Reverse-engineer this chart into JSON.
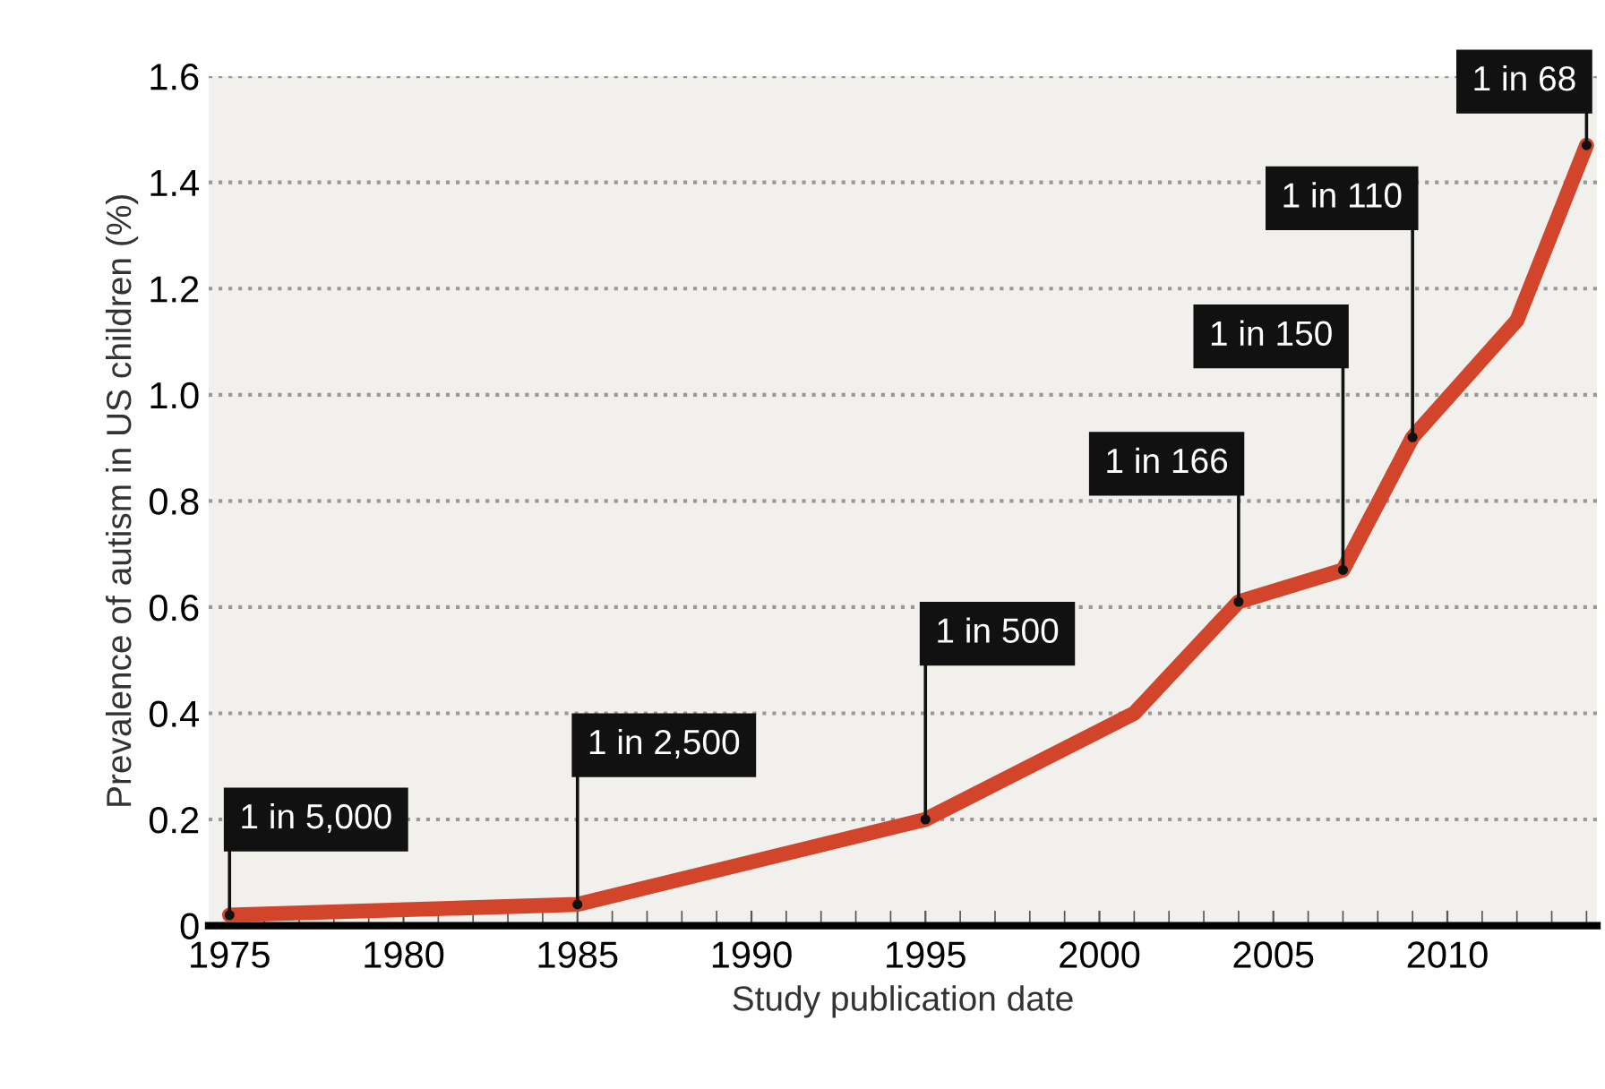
{
  "chart_data": {
    "type": "line",
    "xlabel": "Study publication date",
    "ylabel": "Prevalence of autism in US children (%)",
    "x": [
      1975,
      1985,
      1995,
      2001,
      2004,
      2007,
      2009,
      2012,
      2014
    ],
    "series": [
      {
        "color": "#d2452b",
        "values": [
          0.02,
          0.04,
          0.2,
          0.4,
          0.61,
          0.67,
          0.92,
          1.14,
          1.47
        ]
      }
    ],
    "xlim": [
      1974.4,
      2014.3
    ],
    "xticks": [
      1975,
      1980,
      1985,
      1990,
      1995,
      2000,
      2005,
      2010
    ],
    "ylim": [
      0,
      1.6
    ],
    "yticks": [
      0,
      {
        "value": 0.2,
        "label": "0.2"
      },
      {
        "value": 0.4,
        "label": "0.4"
      },
      {
        "value": 0.6,
        "label": "0.6"
      },
      {
        "value": 0.8,
        "label": "0.8"
      },
      {
        "value": 1.0,
        "label": "1.0"
      },
      {
        "value": 1.2,
        "label": "1.2"
      },
      {
        "value": 1.4,
        "label": "1.4"
      },
      {
        "value": 1.6,
        "label": "1.6"
      }
    ],
    "grid": "y",
    "line_style": "solid",
    "annotations": [
      {
        "text": "1 in 5,000",
        "x": 1975,
        "y": 0.02
      },
      {
        "text": "1 in 2,500",
        "x": 1985,
        "y": 0.04
      },
      {
        "text": "1 in 500",
        "x": 1995,
        "y": 0.2
      },
      {
        "text": "1 in 166",
        "x": 2004,
        "y": 0.61
      },
      {
        "text": "1 in 150",
        "x": 2007,
        "y": 0.67
      },
      {
        "text": "1 in 110",
        "x": 2009,
        "y": 0.92
      },
      {
        "text": "1 in 68",
        "x": 2014,
        "y": 1.47
      }
    ]
  }
}
